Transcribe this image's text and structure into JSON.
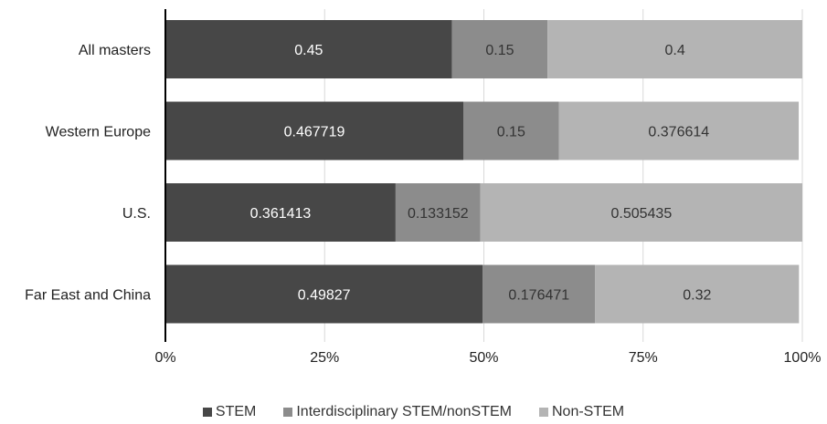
{
  "chart_data": {
    "type": "bar",
    "orientation": "horizontal",
    "stacked": true,
    "title": "",
    "xlabel": "",
    "ylabel": "",
    "xlim": [
      0,
      1
    ],
    "x_ticks": [
      "0%",
      "25%",
      "50%",
      "75%",
      "100%"
    ],
    "grid": true,
    "legend_position": "bottom",
    "categories": [
      "All masters",
      "Western Europe",
      "U.S.",
      "Far East and China"
    ],
    "series": [
      {
        "name": "STEM",
        "color": "#474747",
        "values": [
          0.45,
          0.467719,
          0.361413,
          0.49827
        ],
        "labels": [
          "0.45",
          "0.467719",
          "0.361413",
          "0.49827"
        ]
      },
      {
        "name": "Interdisciplinary STEM/nonSTEM",
        "color": "#8c8c8c",
        "values": [
          0.15,
          0.15,
          0.133152,
          0.176471
        ],
        "labels": [
          "0.15",
          "0.15",
          "0.133152",
          "0.176471"
        ]
      },
      {
        "name": "Non-STEM",
        "color": "#b4b4b4",
        "values": [
          0.4,
          0.376614,
          0.505435,
          0.32
        ],
        "labels": [
          "0.4",
          "0.376614",
          "0.505435",
          "0.32"
        ]
      }
    ]
  }
}
